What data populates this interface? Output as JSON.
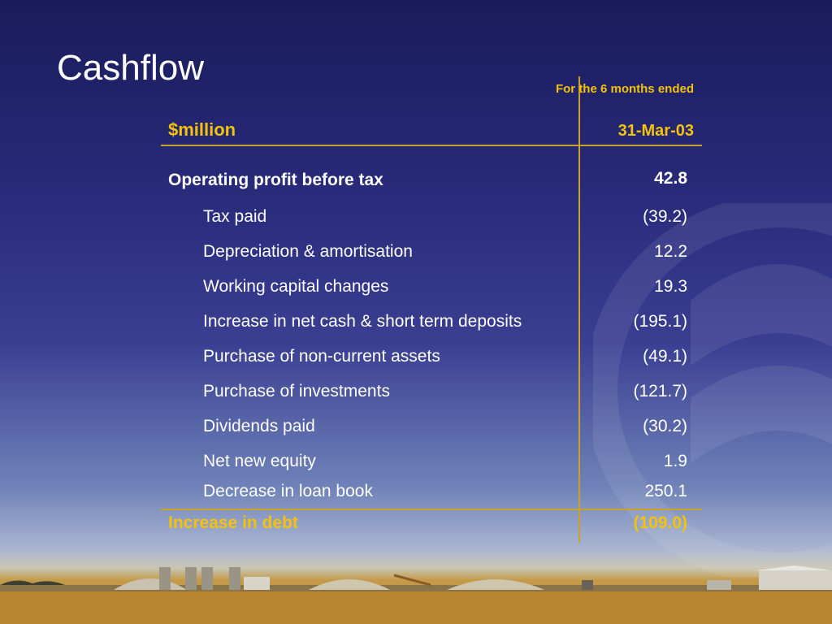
{
  "slide": {
    "title": "Cashflow"
  },
  "table": {
    "unit_header": "$million",
    "period_header": "For the 6 months ended",
    "date_header": "31-Mar-03",
    "rows": [
      {
        "label": "Operating profit before tax",
        "value": "42.8",
        "style": "bold"
      },
      {
        "label": "Tax paid",
        "value": "(39.2)",
        "style": "normal"
      },
      {
        "label": "Depreciation & amortisation",
        "value": "12.2",
        "style": "normal"
      },
      {
        "label": "Working capital changes",
        "value": "19.3",
        "style": "normal"
      },
      {
        "label": "Increase in net cash & short term deposits",
        "value": "(195.1)",
        "style": "normal"
      },
      {
        "label": "Purchase of non-current assets",
        "value": "(49.1)",
        "style": "normal"
      },
      {
        "label": "Purchase of investments",
        "value": "(121.7)",
        "style": "normal"
      },
      {
        "label": "Dividends paid",
        "value": "(30.2)",
        "style": "normal"
      },
      {
        "label": "Net new equity",
        "value": "1.9",
        "style": "normal"
      },
      {
        "label": "Decrease in loan book",
        "value": "250.1",
        "style": "normal"
      }
    ],
    "total": {
      "label": "Increase in debt",
      "value": "(109.0)"
    }
  },
  "colors": {
    "accent": "#f4c20d",
    "rule": "#c9a227",
    "text": "#ffffff",
    "background_top": "#1a1c5a"
  }
}
